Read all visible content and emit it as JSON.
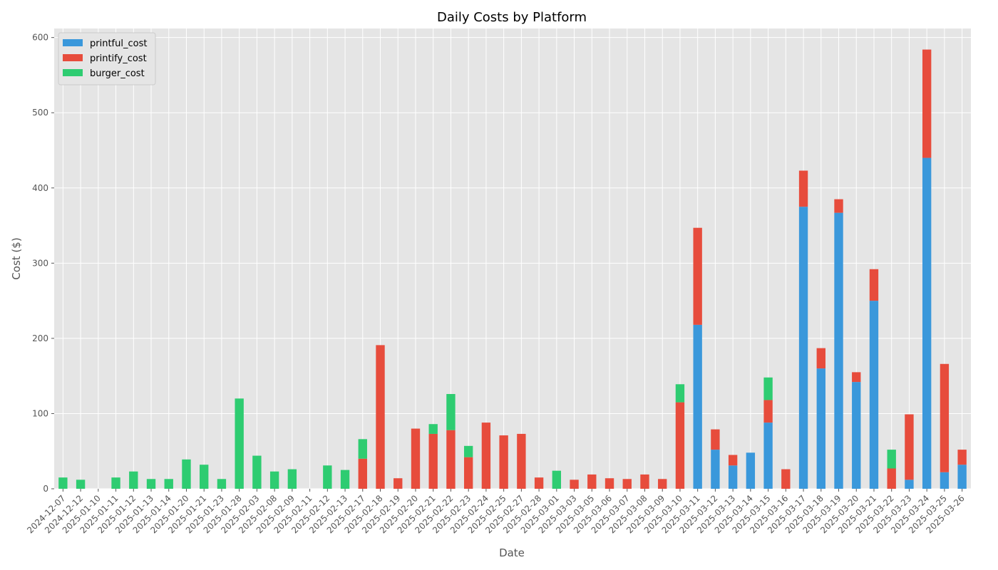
{
  "chart_data": {
    "type": "bar",
    "stacked": true,
    "title": "Daily Costs by Platform",
    "xlabel": "Date",
    "ylabel": "Cost ($)",
    "ylim": [
      0,
      612
    ],
    "yticks": [
      0,
      100,
      200,
      300,
      400,
      500,
      600
    ],
    "grid": true,
    "legend_position": "top-left",
    "categories": [
      "2024-12-07",
      "2024-12-12",
      "2025-01-10",
      "2025-01-11",
      "2025-01-12",
      "2025-01-13",
      "2025-01-14",
      "2025-01-20",
      "2025-01-21",
      "2025-01-23",
      "2025-01-28",
      "2025-02-03",
      "2025-02-08",
      "2025-02-09",
      "2025-02-11",
      "2025-02-12",
      "2025-02-13",
      "2025-02-17",
      "2025-02-18",
      "2025-02-19",
      "2025-02-20",
      "2025-02-21",
      "2025-02-22",
      "2025-02-23",
      "2025-02-24",
      "2025-02-25",
      "2025-02-27",
      "2025-02-28",
      "2025-03-01",
      "2025-03-03",
      "2025-03-05",
      "2025-03-06",
      "2025-03-07",
      "2025-03-08",
      "2025-03-09",
      "2025-03-10",
      "2025-03-11",
      "2025-03-12",
      "2025-03-13",
      "2025-03-14",
      "2025-03-15",
      "2025-03-16",
      "2025-03-17",
      "2025-03-18",
      "2025-03-19",
      "2025-03-20",
      "2025-03-21",
      "2025-03-22",
      "2025-03-23",
      "2025-03-24",
      "2025-03-25",
      "2025-03-26"
    ],
    "series": [
      {
        "name": "printful_cost",
        "color": "#3a98db",
        "values": [
          0,
          0,
          0,
          0,
          0,
          0,
          0,
          0,
          0,
          0,
          0,
          0,
          0,
          0,
          0,
          0,
          0,
          0,
          0,
          0,
          0,
          0,
          0,
          0,
          0,
          0,
          0,
          0,
          0,
          0,
          0,
          0,
          0,
          0,
          0,
          0,
          218,
          52,
          31,
          48,
          88,
          0,
          375,
          160,
          367,
          142,
          250,
          0,
          12,
          440,
          22,
          32
        ]
      },
      {
        "name": "printify_cost",
        "color": "#e74c3c",
        "values": [
          0,
          0,
          0,
          0,
          0,
          0,
          0,
          0,
          0,
          0,
          0,
          0,
          0,
          0,
          0,
          0,
          0,
          40,
          191,
          14,
          80,
          73,
          78,
          42,
          88,
          71,
          73,
          15,
          0,
          12,
          19,
          14,
          13,
          19,
          13,
          115,
          129,
          27,
          14,
          0,
          30,
          26,
          48,
          27,
          18,
          13,
          42,
          27,
          87,
          144,
          144,
          20
        ]
      },
      {
        "name": "burger_cost",
        "color": "#2ecc71",
        "values": [
          15,
          12,
          0,
          15,
          23,
          13,
          13,
          39,
          32,
          13,
          120,
          44,
          23,
          26,
          0,
          31,
          25,
          26,
          0,
          0,
          0,
          13,
          48,
          15,
          0,
          0,
          0,
          0,
          24,
          0,
          0,
          0,
          0,
          0,
          0,
          24,
          0,
          0,
          0,
          0,
          30,
          0,
          0,
          0,
          0,
          0,
          0,
          25,
          0,
          0,
          0,
          0
        ]
      }
    ]
  }
}
